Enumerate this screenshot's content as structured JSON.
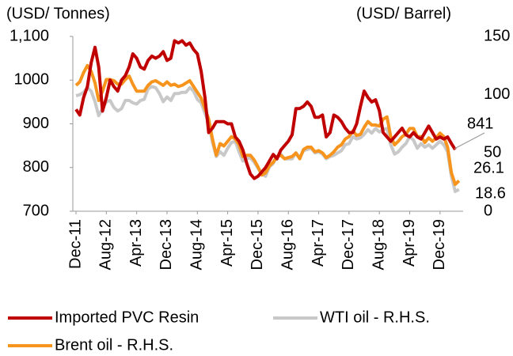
{
  "chart_data": {
    "type": "line",
    "ylabel": "(USD/ Tonnes)",
    "y2label": "(USD/ Barrel)",
    "categories": [
      "Dec-11",
      null,
      null,
      null,
      null,
      null,
      null,
      null,
      "Aug-12",
      null,
      null,
      null,
      null,
      null,
      null,
      null,
      "Apr-13",
      null,
      null,
      null,
      null,
      null,
      null,
      null,
      "Dec-13",
      null,
      null,
      null,
      null,
      null,
      null,
      null,
      "Aug-14",
      null,
      null,
      null,
      null,
      null,
      null,
      null,
      "Apr-15",
      null,
      null,
      null,
      null,
      null,
      null,
      null,
      "Dec-15",
      null,
      null,
      null,
      null,
      null,
      null,
      null,
      "Aug-16",
      null,
      null,
      null,
      null,
      null,
      null,
      null,
      "Apr-17",
      null,
      null,
      null,
      null,
      null,
      null,
      null,
      "Dec-17",
      null,
      null,
      null,
      null,
      null,
      null,
      null,
      "Aug-18",
      null,
      null,
      null,
      null,
      null,
      null,
      null,
      "Apr-19",
      null,
      null,
      null,
      null,
      null,
      null,
      null,
      "Dec-19",
      null,
      null,
      null,
      null,
      null
    ],
    "ylim": [
      700,
      1100
    ],
    "yticks": [
      700,
      800,
      900,
      1000,
      {
        "value": 1100,
        "label": "1,100"
      }
    ],
    "y2lim": [
      0,
      150
    ],
    "y2ticks": [
      0,
      50,
      100,
      150
    ],
    "series": [
      {
        "name": "WTI oil - R.H.S.",
        "color": "#c8c8c8",
        "axis": "y2",
        "values": [
          99,
          100,
          102,
          106,
          103,
          94,
          82,
          88,
          94,
          95,
          89,
          86,
          88,
          95,
          95,
          93,
          92,
          95,
          96,
          105,
          107,
          106,
          101,
          94,
          98,
          95,
          101,
          101,
          102,
          102,
          106,
          103,
          96,
          93,
          84,
          76,
          59,
          47,
          51,
          48,
          54,
          59,
          60,
          51,
          43,
          45,
          46,
          42,
          37,
          32,
          30,
          38,
          41,
          47,
          49,
          45,
          45,
          45,
          50,
          46,
          52,
          53,
          54,
          50,
          51,
          49,
          45,
          47,
          48,
          50,
          52,
          57,
          58,
          64,
          62,
          63,
          66,
          70,
          67,
          71,
          68,
          70,
          71,
          57,
          49,
          51,
          55,
          58,
          64,
          61,
          54,
          58,
          55,
          57,
          54,
          57,
          60,
          57,
          51,
          30,
          17,
          18.6
        ]
      },
      {
        "name": "Brent oil - R.H.S.",
        "color": "#f7941d",
        "axis": "y2",
        "values": [
          108,
          111,
          119,
          125,
          120,
          110,
          95,
          103,
          113,
          113,
          112,
          109,
          109,
          113,
          116,
          109,
          103,
          103,
          103,
          108,
          111,
          112,
          110,
          108,
          111,
          108,
          109,
          107,
          108,
          110,
          112,
          107,
          102,
          97,
          88,
          79,
          62,
          48,
          58,
          56,
          60,
          64,
          62,
          57,
          47,
          48,
          48,
          44,
          38,
          31,
          33,
          39,
          42,
          47,
          48,
          45,
          46,
          47,
          50,
          45,
          53,
          55,
          55,
          51,
          52,
          50,
          46,
          48,
          51,
          55,
          57,
          62,
          64,
          69,
          65,
          66,
          72,
          77,
          74,
          74,
          73,
          79,
          81,
          64,
          57,
          60,
          64,
          66,
          71,
          71,
          64,
          64,
          59,
          63,
          60,
          63,
          67,
          64,
          55,
          33,
          23,
          26.1
        ]
      },
      {
        "name": "Imported PVC Resin",
        "color": "#c00000",
        "values": [
          933,
          920,
          960,
          985,
          1040,
          1075,
          1030,
          929,
          960,
          1000,
          985,
          975,
          1000,
          1010,
          1030,
          1060,
          1050,
          1030,
          1025,
          1045,
          1055,
          1050,
          1055,
          1065,
          1045,
          1050,
          1090,
          1085,
          1090,
          1080,
          1085,
          1070,
          1060,
          1020,
          960,
          880,
          890,
          905,
          905,
          905,
          900,
          900,
          870,
          860,
          840,
          810,
          785,
          775,
          780,
          790,
          800,
          815,
          830,
          820,
          840,
          850,
          860,
          875,
          935,
          935,
          940,
          950,
          940,
          915,
          915,
          920,
          870,
          880,
          920,
          915,
          905,
          890,
          880,
          880,
          900,
          940,
          975,
          960,
          950,
          955,
          930,
          880,
          870,
          860,
          870,
          880,
          890,
          875,
          870,
          880,
          870,
          865,
          880,
          895,
          880,
          865,
          870,
          865,
          870,
          855,
          841,
          null
        ]
      }
    ],
    "annotations": [
      "841",
      "26.1",
      "18.6"
    ]
  }
}
